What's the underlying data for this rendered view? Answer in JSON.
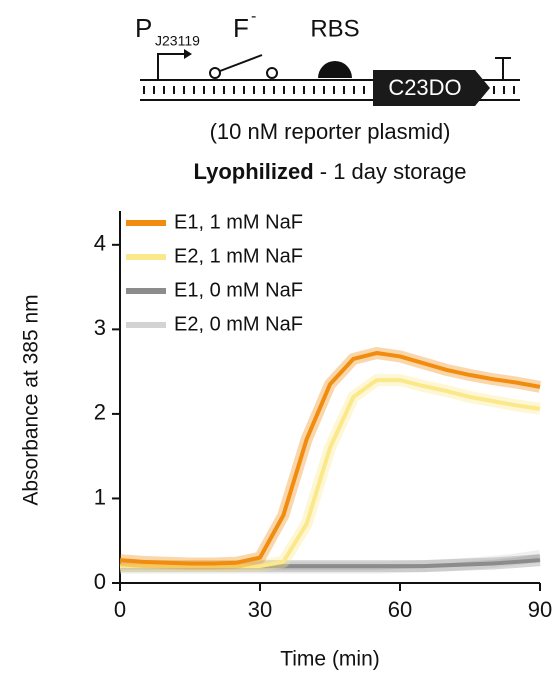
{
  "diagram": {
    "promoter": "P",
    "promoter_sub": "J23119",
    "ion": "F",
    "ion_sup": "-",
    "rbs": "RBS",
    "gene": "C23DO",
    "note": "(10 nM reporter plasmid)"
  },
  "chart_data": {
    "type": "line",
    "title": {
      "bold": "Lyophilized",
      "rest": " - 1 day storage"
    },
    "x_label": "Time (min)",
    "y_label": "Absorbance at 385 nm",
    "x": [
      0,
      5,
      10,
      15,
      20,
      25,
      30,
      35,
      40,
      45,
      50,
      55,
      60,
      65,
      70,
      75,
      80,
      85,
      90
    ],
    "xlim": [
      0,
      90
    ],
    "xticks": [
      0,
      30,
      60,
      90
    ],
    "ylim": [
      0,
      4.4
    ],
    "yticks": [
      0,
      1,
      2,
      3,
      4
    ],
    "legend": "upper left",
    "series": [
      {
        "name": "E1, 1 mM NaF",
        "color": "#f28c0f",
        "values": [
          0.27,
          0.25,
          0.24,
          0.23,
          0.23,
          0.24,
          0.3,
          0.8,
          1.7,
          2.35,
          2.65,
          2.72,
          2.68,
          2.6,
          2.52,
          2.46,
          2.41,
          2.37,
          2.32
        ]
      },
      {
        "name": "E2, 1 mM NaF",
        "color": "#fbe88a",
        "values": [
          0.2,
          0.2,
          0.2,
          0.2,
          0.2,
          0.2,
          0.2,
          0.25,
          0.7,
          1.6,
          2.2,
          2.4,
          2.4,
          2.33,
          2.27,
          2.2,
          2.15,
          2.1,
          2.06
        ]
      },
      {
        "name": "E1, 0 mM NaF",
        "color": "#8c8c8c",
        "values": [
          0.2,
          0.2,
          0.2,
          0.2,
          0.2,
          0.2,
          0.2,
          0.2,
          0.2,
          0.2,
          0.2,
          0.2,
          0.2,
          0.2,
          0.21,
          0.22,
          0.23,
          0.25,
          0.27
        ]
      },
      {
        "name": "E2, 0 mM NaF",
        "color": "#d3d3d3",
        "values": [
          0.18,
          0.18,
          0.18,
          0.18,
          0.18,
          0.18,
          0.18,
          0.18,
          0.18,
          0.18,
          0.18,
          0.18,
          0.19,
          0.2,
          0.21,
          0.23,
          0.25,
          0.28,
          0.32
        ]
      }
    ]
  }
}
